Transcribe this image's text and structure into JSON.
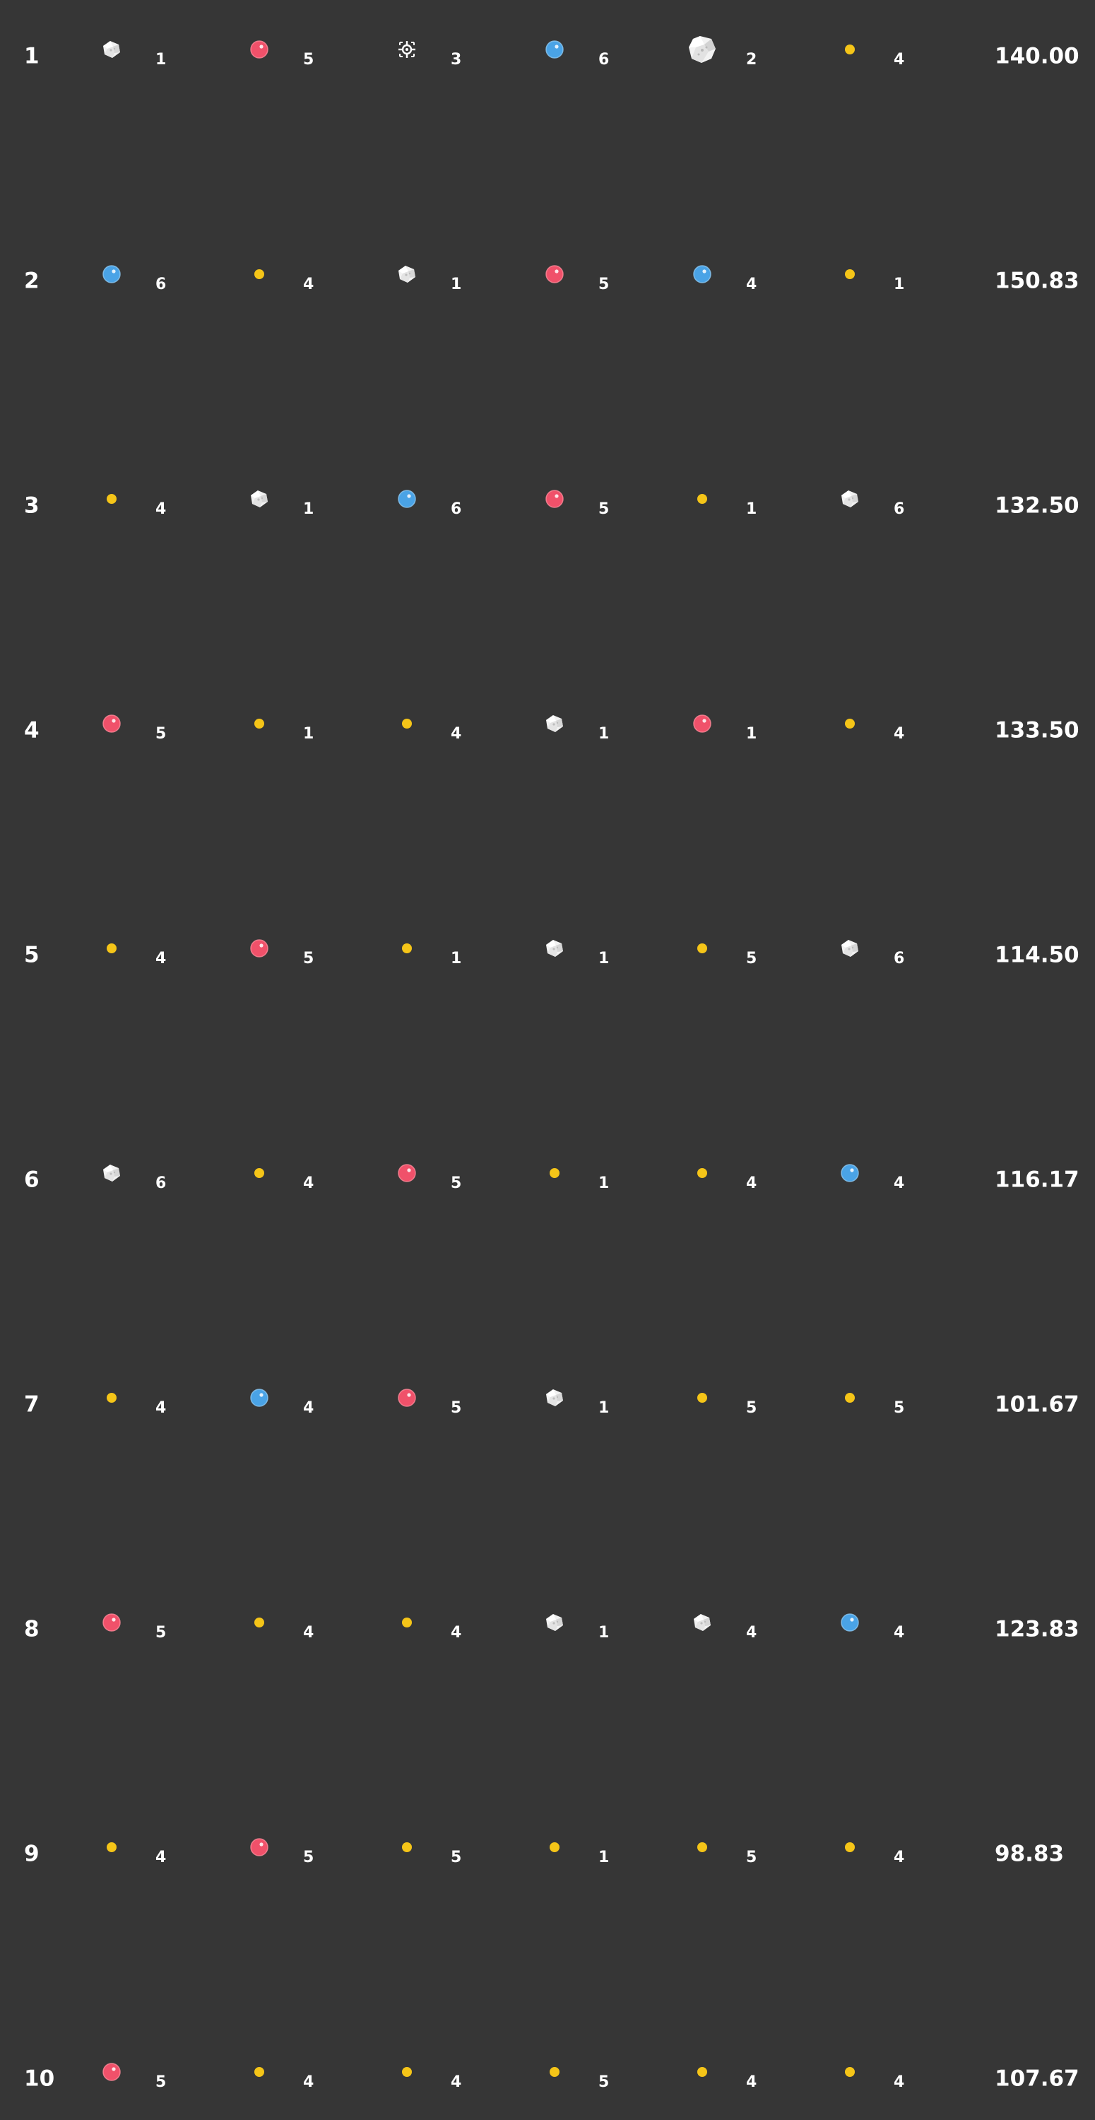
{
  "colors": {
    "background": "#363636",
    "text": "#ffffff",
    "red_orb": "#f0516a",
    "blue_orb": "#4aa3e6",
    "yellow_dot": "#f5c518",
    "white_crystal": "#f2f2f2"
  },
  "icon_names": {
    "crystal": "white-crystal-icon",
    "crystal_large": "large-white-crystal-icon",
    "red": "red-orb-icon",
    "blue": "blue-orb-icon",
    "yellow": "yellow-dot-icon",
    "target": "target-crosshair-icon"
  },
  "rows": [
    {
      "number": "1",
      "score": "140.00",
      "slots": [
        {
          "icon": "crystal",
          "count": "1"
        },
        {
          "icon": "red",
          "count": "5"
        },
        {
          "icon": "target",
          "count": "3"
        },
        {
          "icon": "blue",
          "count": "6"
        },
        {
          "icon": "crystal_large",
          "count": "2"
        },
        {
          "icon": "yellow",
          "count": "4"
        }
      ]
    },
    {
      "number": "2",
      "score": "150.83",
      "slots": [
        {
          "icon": "blue",
          "count": "6"
        },
        {
          "icon": "yellow",
          "count": "4"
        },
        {
          "icon": "crystal",
          "count": "1"
        },
        {
          "icon": "red",
          "count": "5"
        },
        {
          "icon": "blue",
          "count": "4"
        },
        {
          "icon": "yellow",
          "count": "1"
        }
      ]
    },
    {
      "number": "3",
      "score": "132.50",
      "slots": [
        {
          "icon": "yellow",
          "count": "4"
        },
        {
          "icon": "crystal",
          "count": "1"
        },
        {
          "icon": "blue",
          "count": "6"
        },
        {
          "icon": "red",
          "count": "5"
        },
        {
          "icon": "yellow",
          "count": "1"
        },
        {
          "icon": "crystal",
          "count": "6"
        }
      ]
    },
    {
      "number": "4",
      "score": "133.50",
      "slots": [
        {
          "icon": "red",
          "count": "5"
        },
        {
          "icon": "yellow",
          "count": "1"
        },
        {
          "icon": "yellow",
          "count": "4"
        },
        {
          "icon": "crystal",
          "count": "1"
        },
        {
          "icon": "red",
          "count": "1"
        },
        {
          "icon": "yellow",
          "count": "4"
        }
      ]
    },
    {
      "number": "5",
      "score": "114.50",
      "slots": [
        {
          "icon": "yellow",
          "count": "4"
        },
        {
          "icon": "red",
          "count": "5"
        },
        {
          "icon": "yellow",
          "count": "1"
        },
        {
          "icon": "crystal",
          "count": "1"
        },
        {
          "icon": "yellow",
          "count": "5"
        },
        {
          "icon": "crystal",
          "count": "6"
        }
      ]
    },
    {
      "number": "6",
      "score": "116.17",
      "slots": [
        {
          "icon": "crystal",
          "count": "6"
        },
        {
          "icon": "yellow",
          "count": "4"
        },
        {
          "icon": "red",
          "count": "5"
        },
        {
          "icon": "yellow",
          "count": "1"
        },
        {
          "icon": "yellow",
          "count": "4"
        },
        {
          "icon": "blue",
          "count": "4"
        }
      ]
    },
    {
      "number": "7",
      "score": "101.67",
      "slots": [
        {
          "icon": "yellow",
          "count": "4"
        },
        {
          "icon": "blue",
          "count": "4"
        },
        {
          "icon": "red",
          "count": "5"
        },
        {
          "icon": "crystal",
          "count": "1"
        },
        {
          "icon": "yellow",
          "count": "5"
        },
        {
          "icon": "yellow",
          "count": "5"
        }
      ]
    },
    {
      "number": "8",
      "score": "123.83",
      "slots": [
        {
          "icon": "red",
          "count": "5"
        },
        {
          "icon": "yellow",
          "count": "4"
        },
        {
          "icon": "yellow",
          "count": "4"
        },
        {
          "icon": "crystal",
          "count": "1"
        },
        {
          "icon": "crystal",
          "count": "4"
        },
        {
          "icon": "blue",
          "count": "4"
        }
      ]
    },
    {
      "number": "9",
      "score": "98.83",
      "slots": [
        {
          "icon": "yellow",
          "count": "4"
        },
        {
          "icon": "red",
          "count": "5"
        },
        {
          "icon": "yellow",
          "count": "5"
        },
        {
          "icon": "yellow",
          "count": "1"
        },
        {
          "icon": "yellow",
          "count": "5"
        },
        {
          "icon": "yellow",
          "count": "4"
        }
      ]
    },
    {
      "number": "10",
      "score": "107.67",
      "slots": [
        {
          "icon": "red",
          "count": "5"
        },
        {
          "icon": "yellow",
          "count": "4"
        },
        {
          "icon": "yellow",
          "count": "4"
        },
        {
          "icon": "yellow",
          "count": "5"
        },
        {
          "icon": "yellow",
          "count": "4"
        },
        {
          "icon": "yellow",
          "count": "4"
        }
      ]
    }
  ]
}
